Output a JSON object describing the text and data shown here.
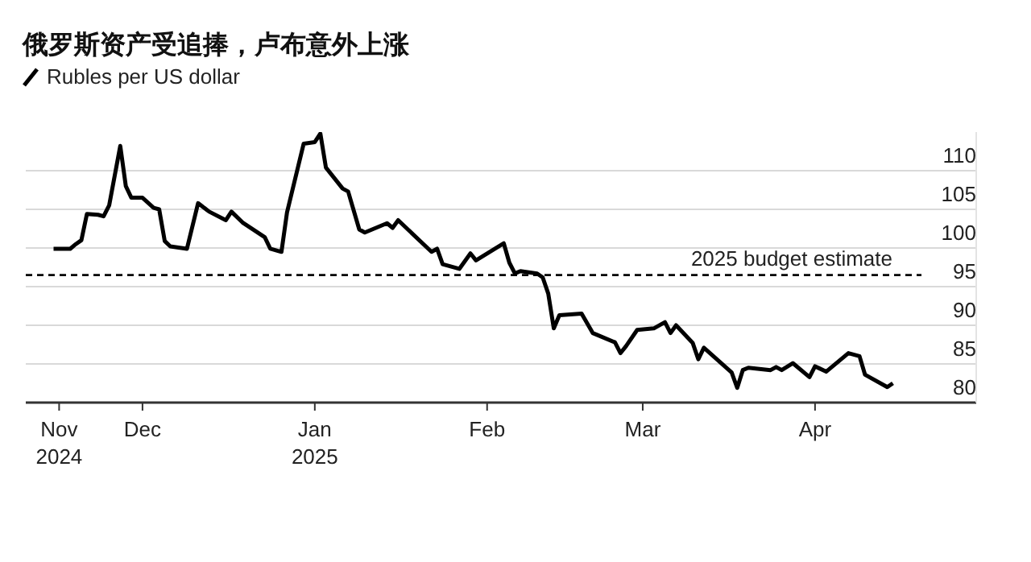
{
  "chart_data": {
    "type": "line",
    "title": "俄罗斯资产受追捧，卢布意外上涨",
    "x": [
      "2024-11-15",
      "2024-11-18",
      "2024-11-19",
      "2024-11-20",
      "2024-11-21",
      "2024-11-23",
      "2024-11-24",
      "2024-11-25",
      "2024-11-27",
      "2024-11-28",
      "2024-11-29",
      "2024-12-01",
      "2024-12-03",
      "2024-12-04",
      "2024-12-05",
      "2024-12-06",
      "2024-12-09",
      "2024-12-11",
      "2024-12-13",
      "2024-12-16",
      "2024-12-17",
      "2024-12-19",
      "2024-12-23",
      "2024-12-24",
      "2024-12-26",
      "2024-12-27",
      "2024-12-30",
      "2025-01-01",
      "2025-01-02",
      "2025-01-03",
      "2025-01-06",
      "2025-01-07",
      "2025-01-09",
      "2025-01-10",
      "2025-01-14",
      "2025-01-15",
      "2025-01-16",
      "2025-01-22",
      "2025-01-23",
      "2025-01-24",
      "2025-01-27",
      "2025-01-29",
      "2025-01-30",
      "2025-02-04",
      "2025-02-05",
      "2025-02-06",
      "2025-02-07",
      "2025-02-10",
      "2025-02-11",
      "2025-02-12",
      "2025-02-13",
      "2025-02-14",
      "2025-02-18",
      "2025-02-20",
      "2025-02-24",
      "2025-02-25",
      "2025-02-26",
      "2025-02-28",
      "2025-03-03",
      "2025-03-05",
      "2025-03-06",
      "2025-03-07",
      "2025-03-10",
      "2025-03-11",
      "2025-03-12",
      "2025-03-17",
      "2025-03-18",
      "2025-03-19",
      "2025-03-20",
      "2025-03-24",
      "2025-03-25",
      "2025-03-26",
      "2025-03-28",
      "2025-03-31",
      "2025-04-01",
      "2025-04-03",
      "2025-04-07",
      "2025-04-09",
      "2025-04-10",
      "2025-04-14",
      "2025-04-15"
    ],
    "series": [
      {
        "name": "Rubles per US dollar",
        "color": "#000000",
        "values": [
          99.9,
          99.9,
          100.5,
          101.0,
          104.4,
          104.3,
          104.1,
          105.5,
          113.2,
          108.0,
          106.5,
          106.5,
          105.2,
          105.0,
          100.9,
          100.2,
          99.9,
          105.8,
          104.7,
          103.6,
          104.7,
          103.3,
          101.4,
          99.9,
          99.5,
          104.6,
          113.5,
          113.7,
          114.8,
          110.4,
          107.7,
          107.3,
          102.4,
          102.0,
          103.2,
          102.6,
          103.6,
          99.5,
          99.9,
          97.9,
          97.3,
          99.3,
          98.4,
          100.6,
          98.1,
          96.7,
          97.0,
          96.7,
          96.2,
          94.1,
          89.6,
          91.3,
          91.5,
          89.0,
          87.8,
          86.4,
          87.3,
          89.4,
          89.6,
          90.4,
          89.0,
          90.0,
          87.7,
          85.6,
          87.1,
          83.9,
          81.9,
          84.2,
          84.5,
          84.2,
          84.6,
          84.2,
          85.1,
          83.3,
          84.7,
          84.0,
          86.4,
          86.0,
          83.6,
          82.0,
          82.5
        ]
      }
    ],
    "xlim": [
      "2024-11-10",
      "2025-04-30"
    ],
    "xticks": [
      {
        "value": "2024-11-16",
        "label": "Nov\n2024"
      },
      {
        "value": "2024-12-01",
        "label": "Dec"
      },
      {
        "value": "2025-01-01",
        "label": "Jan\n2025"
      },
      {
        "value": "2025-02-01",
        "label": "Feb"
      },
      {
        "value": "2025-03-01",
        "label": "Mar"
      },
      {
        "value": "2025-04-01",
        "label": "Apr"
      }
    ],
    "ylim": [
      80,
      115
    ],
    "yticks": [
      80,
      85,
      90,
      95,
      100,
      105,
      110
    ],
    "ref_lines": [
      {
        "axis": "y",
        "value": 96.5,
        "label": "2025 budget estimate",
        "color": "#000000",
        "line_style": "dashed"
      }
    ],
    "grid": "y",
    "legend": "top left",
    "line_style": "solid"
  }
}
